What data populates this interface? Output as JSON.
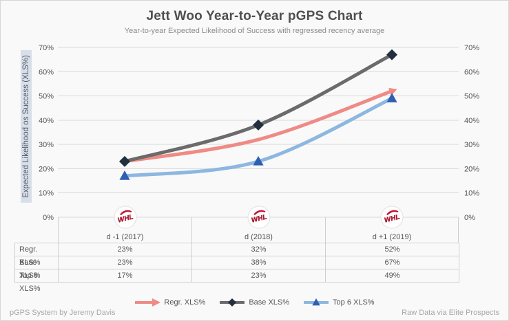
{
  "title": "Jett Woo Year-to-Year pGPS Chart",
  "subtitle": "Year-to-year Expected Likelihood of Success with regressed recency average",
  "chart_data": {
    "type": "line",
    "categories": [
      "d -1 (2017)",
      "d (2018)",
      "d +1 (2019)"
    ],
    "series": [
      {
        "name": "Regr. XLS%",
        "values": [
          23,
          32,
          52
        ],
        "color": "#ef8a85",
        "marker": "arrow",
        "marker_color": "#ef8a85"
      },
      {
        "name": "Base XLS%",
        "values": [
          23,
          38,
          67
        ],
        "color": "#6b6b6b",
        "marker": "diamond",
        "marker_color": "#232f3e"
      },
      {
        "name": "Top 6 XLS%",
        "values": [
          17,
          23,
          49
        ],
        "color": "#8cb7e0",
        "marker": "triangle",
        "marker_color": "#2f5fb3"
      }
    ],
    "ylabel": "Expected Likelihood os Success (XLS%)",
    "ylim": [
      0,
      70
    ],
    "ytick_step": 10,
    "ytick_suffix": "%",
    "grid": true,
    "dual_y_axis": true,
    "legend_position": "bottom",
    "x_axis_icon": {
      "name": "whl-logo",
      "text": "WHL",
      "color": "#c8102e"
    }
  },
  "table": {
    "rows": [
      {
        "label": "Regr. XLS%",
        "values": [
          "23%",
          "32%",
          "52%"
        ]
      },
      {
        "label": "Base XLS%",
        "values": [
          "23%",
          "38%",
          "67%"
        ]
      },
      {
        "label": "Top 6 XLS%",
        "values": [
          "17%",
          "23%",
          "49%"
        ]
      }
    ]
  },
  "footer": {
    "left": "pGPS System by Jeremy Davis",
    "right": "Raw Data via Elite Prospects"
  },
  "colors": {
    "background": "#f9f9f9",
    "gridline": "#d9d9d9",
    "axis_text": "#555555",
    "ylabel_highlight": "#d9dfe9",
    "table_border": "#cfcfcf"
  }
}
